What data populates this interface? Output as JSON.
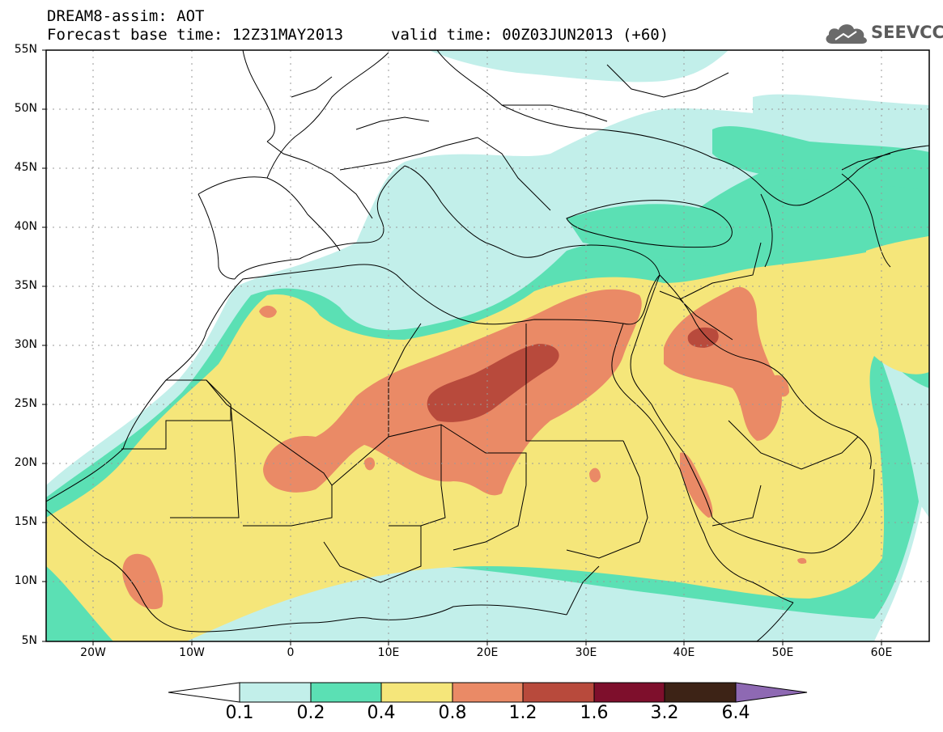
{
  "header": {
    "line1": "DREAM8-assim: AOT",
    "line2": "Forecast base time: 12Z31MAY2013",
    "line3": "valid time: 00Z03JUN2013 (+60)"
  },
  "logo": {
    "text": "SEEVCCC",
    "icon": "cloud-icon"
  },
  "map": {
    "lon_range": [
      -25,
      65
    ],
    "lat_range": [
      5,
      55
    ],
    "lat_labels": [
      "55N",
      "50N",
      "45N",
      "40N",
      "35N",
      "30N",
      "25N",
      "20N",
      "15N",
      "10N",
      "5N"
    ],
    "lon_labels": [
      "20W",
      "10W",
      "0",
      "10E",
      "20E",
      "30E",
      "40E",
      "50E",
      "60E"
    ]
  },
  "legend": {
    "labels": [
      "0.1",
      "0.2",
      "0.4",
      "0.8",
      "1.2",
      "1.6",
      "3.2",
      "6.4"
    ],
    "colors": [
      "#ffffff",
      "#c2efea",
      "#5be0b4",
      "#f5e67a",
      "#ea8a66",
      "#b84a3c",
      "#7e0f2c",
      "#3d2316",
      "#8e69b3"
    ]
  },
  "colors": {
    "v01": "#c2efea",
    "v02": "#5be0b4",
    "v04": "#f5e67a",
    "v08": "#ea8a66",
    "v12": "#b84a3c",
    "v16": "#7e0f2c"
  }
}
